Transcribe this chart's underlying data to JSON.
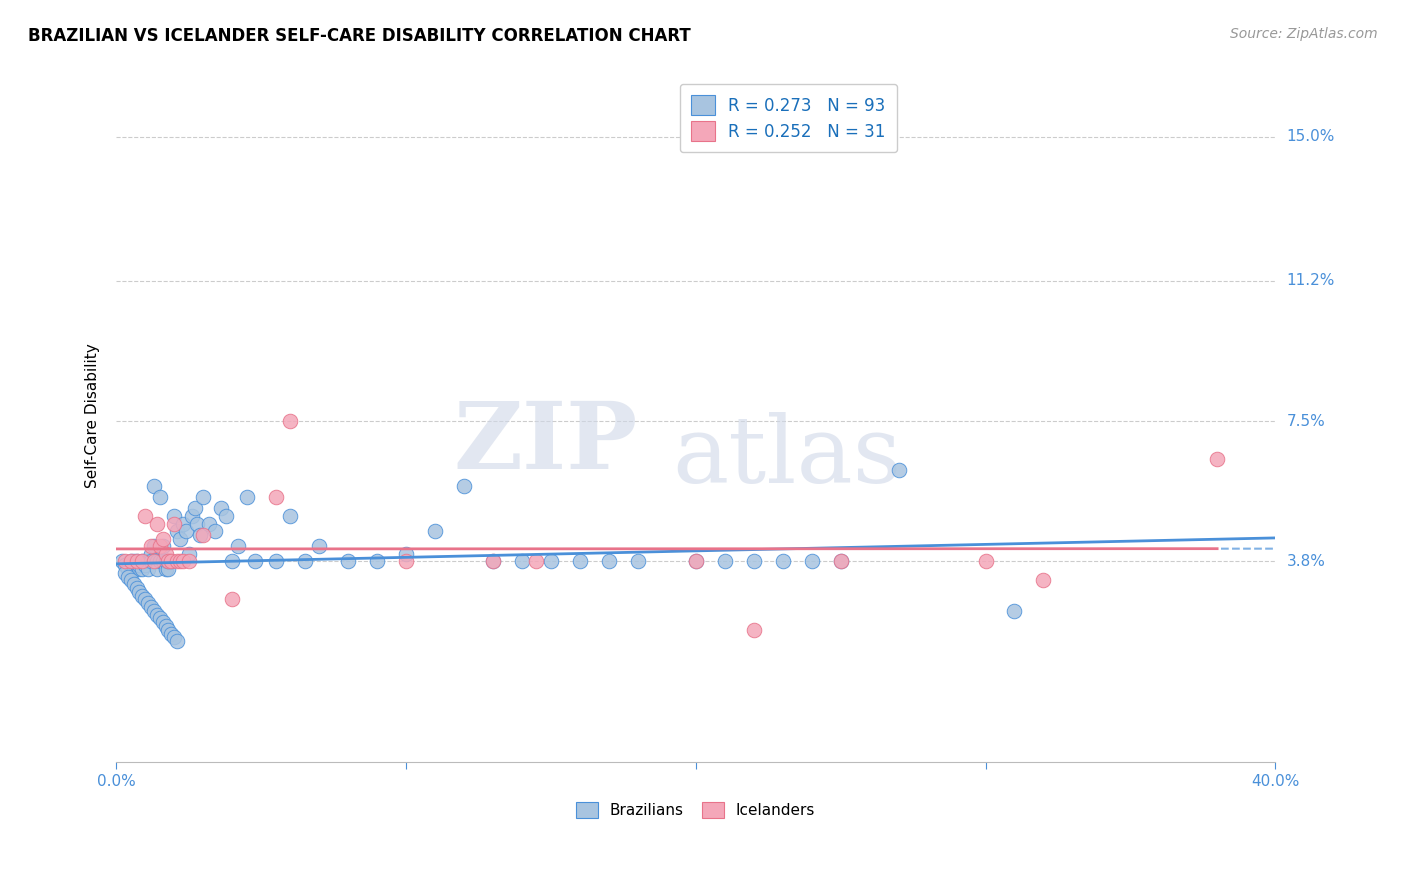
{
  "title": "BRAZILIAN VS ICELANDER SELF-CARE DISABILITY CORRELATION CHART",
  "source": "Source: ZipAtlas.com",
  "ylabel": "Self-Care Disability",
  "ytick_labels": [
    "15.0%",
    "11.2%",
    "7.5%",
    "3.8%"
  ],
  "ytick_values": [
    0.15,
    0.112,
    0.075,
    0.038
  ],
  "xlim": [
    0.0,
    0.4
  ],
  "ylim": [
    -0.015,
    0.168
  ],
  "brazil_R": 0.273,
  "brazil_N": 93,
  "iceland_R": 0.252,
  "iceland_N": 31,
  "brazil_color": "#a8c4e0",
  "iceland_color": "#f4a7b9",
  "brazil_line_color": "#4a90d9",
  "iceland_line_color": "#e8738a",
  "brazil_scatter_x": [
    0.002,
    0.003,
    0.004,
    0.005,
    0.005,
    0.006,
    0.006,
    0.007,
    0.007,
    0.008,
    0.008,
    0.009,
    0.009,
    0.01,
    0.01,
    0.011,
    0.011,
    0.012,
    0.012,
    0.013,
    0.013,
    0.014,
    0.014,
    0.015,
    0.015,
    0.016,
    0.016,
    0.017,
    0.017,
    0.018,
    0.018,
    0.019,
    0.02,
    0.021,
    0.022,
    0.023,
    0.024,
    0.025,
    0.026,
    0.027,
    0.028,
    0.029,
    0.03,
    0.032,
    0.034,
    0.036,
    0.038,
    0.04,
    0.042,
    0.045,
    0.048,
    0.055,
    0.06,
    0.065,
    0.07,
    0.08,
    0.09,
    0.1,
    0.11,
    0.12,
    0.13,
    0.14,
    0.15,
    0.16,
    0.17,
    0.18,
    0.2,
    0.21,
    0.22,
    0.23,
    0.24,
    0.25,
    0.27,
    0.003,
    0.004,
    0.005,
    0.006,
    0.007,
    0.008,
    0.009,
    0.01,
    0.011,
    0.012,
    0.013,
    0.014,
    0.015,
    0.016,
    0.017,
    0.018,
    0.019,
    0.02,
    0.021,
    0.31
  ],
  "brazil_scatter_y": [
    0.038,
    0.037,
    0.036,
    0.038,
    0.035,
    0.036,
    0.038,
    0.037,
    0.038,
    0.036,
    0.037,
    0.038,
    0.036,
    0.037,
    0.038,
    0.038,
    0.036,
    0.04,
    0.038,
    0.058,
    0.042,
    0.038,
    0.036,
    0.038,
    0.055,
    0.042,
    0.038,
    0.036,
    0.038,
    0.036,
    0.038,
    0.038,
    0.05,
    0.046,
    0.044,
    0.048,
    0.046,
    0.04,
    0.05,
    0.052,
    0.048,
    0.045,
    0.055,
    0.048,
    0.046,
    0.052,
    0.05,
    0.038,
    0.042,
    0.055,
    0.038,
    0.038,
    0.05,
    0.038,
    0.042,
    0.038,
    0.038,
    0.04,
    0.046,
    0.058,
    0.038,
    0.038,
    0.038,
    0.038,
    0.038,
    0.038,
    0.038,
    0.038,
    0.038,
    0.038,
    0.038,
    0.038,
    0.062,
    0.035,
    0.034,
    0.033,
    0.032,
    0.031,
    0.03,
    0.029,
    0.028,
    0.027,
    0.026,
    0.025,
    0.024,
    0.023,
    0.022,
    0.021,
    0.02,
    0.019,
    0.018,
    0.017,
    0.025
  ],
  "iceland_scatter_x": [
    0.003,
    0.005,
    0.007,
    0.009,
    0.01,
    0.012,
    0.013,
    0.014,
    0.015,
    0.016,
    0.017,
    0.018,
    0.019,
    0.02,
    0.021,
    0.022,
    0.023,
    0.025,
    0.03,
    0.04,
    0.055,
    0.06,
    0.1,
    0.13,
    0.145,
    0.2,
    0.22,
    0.25,
    0.3,
    0.32,
    0.38
  ],
  "iceland_scatter_y": [
    0.038,
    0.038,
    0.038,
    0.038,
    0.05,
    0.042,
    0.038,
    0.048,
    0.042,
    0.044,
    0.04,
    0.038,
    0.038,
    0.048,
    0.038,
    0.038,
    0.038,
    0.038,
    0.045,
    0.028,
    0.055,
    0.075,
    0.038,
    0.038,
    0.038,
    0.038,
    0.02,
    0.038,
    0.038,
    0.033,
    0.065
  ],
  "watermark_zip": "ZIP",
  "watermark_atlas": "atlas",
  "background_color": "#ffffff",
  "grid_color": "#cccccc",
  "legend_text_color": "#1a6fba",
  "tick_color": "#4a90d9",
  "source_color": "#999999"
}
